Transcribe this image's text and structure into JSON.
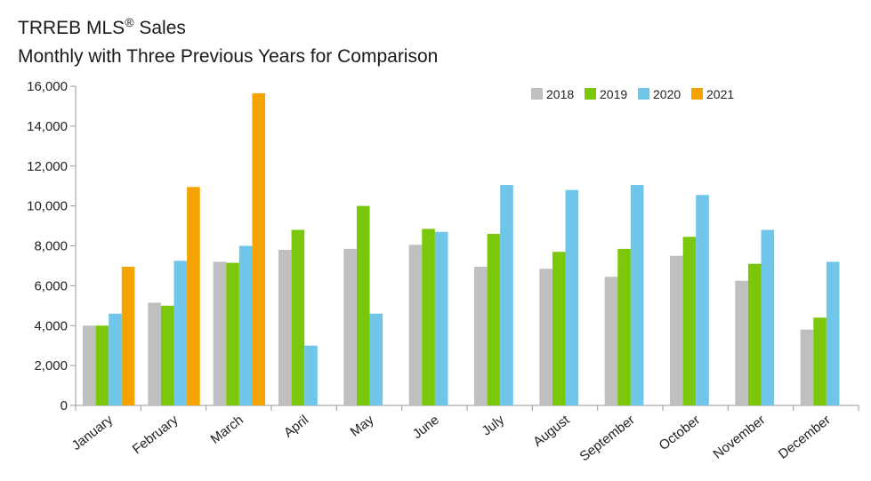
{
  "chart_data": {
    "type": "bar",
    "title": "TRREB MLS® Sales",
    "title_main": "TRREB MLS",
    "title_sup": "®",
    "title_rest": " Sales",
    "subtitle": "Monthly with Three Previous Years for Comparison",
    "xlabel": "",
    "ylabel": "",
    "ylim": [
      0,
      16000
    ],
    "yticks": [
      0,
      2000,
      4000,
      6000,
      8000,
      10000,
      12000,
      14000,
      16000
    ],
    "ytick_labels": [
      "0",
      "2,000",
      "4,000",
      "6,000",
      "8,000",
      "10,000",
      "12,000",
      "14,000",
      "16,000"
    ],
    "grid": false,
    "legend_position": "top-right",
    "categories": [
      "January",
      "February",
      "March",
      "April",
      "May",
      "June",
      "July",
      "August",
      "September",
      "October",
      "November",
      "December"
    ],
    "series": [
      {
        "name": "2018",
        "color": "#bfbfbf",
        "values": [
          4000,
          5150,
          7200,
          7800,
          7850,
          8050,
          6950,
          6850,
          6450,
          7500,
          6250,
          3800
        ]
      },
      {
        "name": "2019",
        "color": "#7ac70c",
        "values": [
          4000,
          5000,
          7150,
          8800,
          10000,
          8850,
          8600,
          7700,
          7850,
          8450,
          7100,
          4400
        ]
      },
      {
        "name": "2020",
        "color": "#6fc6e8",
        "values": [
          4600,
          7250,
          8000,
          3000,
          4600,
          8700,
          11050,
          10800,
          11050,
          10550,
          8800,
          7200
        ]
      },
      {
        "name": "2021",
        "color": "#f4a300",
        "values": [
          6950,
          10950,
          15650,
          null,
          null,
          null,
          null,
          null,
          null,
          null,
          null,
          null
        ]
      }
    ]
  }
}
